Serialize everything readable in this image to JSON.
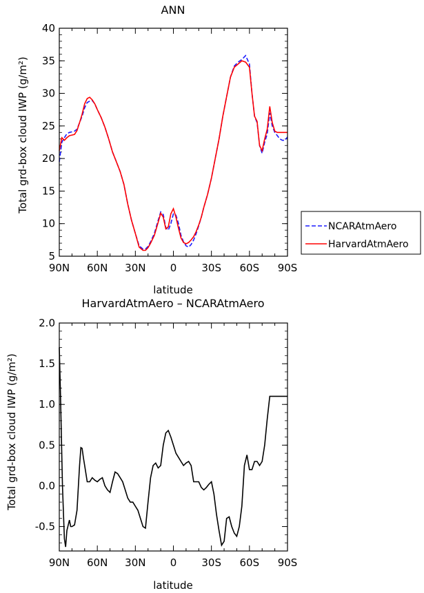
{
  "chart_data": [
    {
      "type": "line",
      "title": "ANN",
      "xlabel": "latitude",
      "ylabel": "Total grd-box cloud IWP (g/m²)",
      "xlim": [
        90,
        -90
      ],
      "ylim": [
        5,
        40
      ],
      "xticks": [
        90,
        60,
        30,
        0,
        -30,
        -60,
        -90
      ],
      "xtick_labels": [
        "90N",
        "60N",
        "30N",
        "0",
        "30S",
        "60S",
        "90S"
      ],
      "yticks": [
        5,
        10,
        15,
        20,
        25,
        30,
        35,
        40
      ],
      "ytick_labels": [
        "5",
        "10",
        "15",
        "20",
        "25",
        "30",
        "35",
        "40"
      ],
      "legend": "outside-right",
      "series": [
        {
          "name": "NCARAtmAero",
          "color": "#1a1aff",
          "dash": "dashed",
          "x": [
            90,
            88,
            86,
            84,
            82,
            80,
            78,
            76,
            74,
            72,
            70,
            68,
            66,
            64,
            62,
            60,
            57,
            54,
            51,
            48,
            45,
            42,
            39,
            36,
            33,
            30,
            27,
            24,
            22,
            20,
            18,
            15,
            12,
            10,
            8,
            6,
            4,
            2,
            0,
            -2,
            -4,
            -6,
            -8,
            -10,
            -12,
            -14,
            -16,
            -18,
            -20,
            -22,
            -24,
            -27,
            -30,
            -33,
            -36,
            -39,
            -42,
            -45,
            -48,
            -51,
            -54,
            -57,
            -60,
            -62,
            -64,
            -66,
            -68,
            -70,
            -72,
            -74,
            -76,
            -78,
            -80,
            -82,
            -84,
            -86,
            -88,
            -90
          ],
          "y": [
            19.5,
            22.5,
            23.2,
            23.8,
            24.0,
            24.1,
            24.2,
            24.5,
            25.5,
            26.5,
            27.8,
            28.6,
            28.8,
            28.9,
            28.4,
            27.5,
            26.3,
            24.8,
            23.0,
            21.0,
            19.5,
            18.0,
            16.0,
            13.0,
            10.5,
            8.5,
            6.6,
            6.1,
            6.1,
            6.5,
            7.2,
            8.5,
            10.5,
            11.8,
            11.4,
            9.4,
            9.0,
            10.0,
            11.5,
            11.3,
            10.0,
            8.2,
            7.2,
            6.6,
            6.4,
            6.8,
            7.5,
            8.5,
            9.7,
            11.0,
            12.5,
            14.5,
            17.0,
            20.0,
            23.0,
            26.5,
            29.5,
            32.5,
            34.2,
            34.8,
            35.2,
            35.8,
            34.5,
            30.0,
            26.5,
            25.5,
            22.0,
            20.8,
            22.5,
            23.8,
            27.0,
            25.0,
            24.0,
            23.5,
            23.0,
            22.8,
            22.8,
            23.3
          ]
        },
        {
          "name": "HarvardAtmAero",
          "color": "#ff0000",
          "dash": "solid",
          "x": [
            90,
            88,
            86,
            84,
            82,
            80,
            78,
            76,
            74,
            72,
            70,
            68,
            66,
            64,
            62,
            60,
            57,
            54,
            51,
            48,
            45,
            42,
            39,
            36,
            33,
            30,
            27,
            24,
            22,
            20,
            18,
            15,
            12,
            10,
            8,
            6,
            4,
            2,
            0,
            -2,
            -4,
            -6,
            -8,
            -10,
            -12,
            -14,
            -16,
            -18,
            -20,
            -22,
            -24,
            -27,
            -30,
            -33,
            -36,
            -39,
            -42,
            -45,
            -48,
            -51,
            -54,
            -57,
            -60,
            -62,
            -64,
            -66,
            -68,
            -70,
            -72,
            -74,
            -76,
            -78,
            -80,
            -82,
            -84,
            -86,
            -88,
            -90
          ],
          "y": [
            21.2,
            23.2,
            22.8,
            23.2,
            23.5,
            23.6,
            23.7,
            24.3,
            25.5,
            26.8,
            28.4,
            29.2,
            29.4,
            29.0,
            28.4,
            27.5,
            26.3,
            24.8,
            23.0,
            21.0,
            19.5,
            18.0,
            16.0,
            13.0,
            10.5,
            8.5,
            6.4,
            5.9,
            5.9,
            6.3,
            7.0,
            8.2,
            10.2,
            11.6,
            11.0,
            9.2,
            9.5,
            11.5,
            12.3,
            11.0,
            9.3,
            7.8,
            7.1,
            6.9,
            7.1,
            7.5,
            8.0,
            8.8,
            9.8,
            11.0,
            12.5,
            14.5,
            17.0,
            20.0,
            23.0,
            26.5,
            29.5,
            32.5,
            34.0,
            34.5,
            35.0,
            34.8,
            34.0,
            30.0,
            26.5,
            25.7,
            22.0,
            21.2,
            23.0,
            24.5,
            28.0,
            25.5,
            24.2,
            24.0,
            24.0,
            24.0,
            24.0,
            24.0
          ]
        }
      ]
    },
    {
      "type": "line",
      "title": "HarvardAtmAero – NCARAtmAero",
      "xlabel": "latitude",
      "ylabel": "Total grd-box cloud IWP (g/m²)",
      "xlim": [
        90,
        -90
      ],
      "ylim": [
        -0.8,
        2.0
      ],
      "xticks": [
        90,
        60,
        30,
        0,
        -30,
        -60,
        -90
      ],
      "xtick_labels": [
        "90N",
        "60N",
        "30N",
        "0",
        "30S",
        "60S",
        "90S"
      ],
      "yticks": [
        -0.5,
        0,
        0.5,
        1,
        1.5,
        2
      ],
      "ytick_labels": [
        "-0.5",
        "0.0",
        "0.5",
        "1.0",
        "1.5",
        "2.0"
      ],
      "series": [
        {
          "color": "#000000",
          "dash": "solid",
          "x": [
            90,
            89,
            87.5,
            86,
            85,
            84,
            82,
            81,
            80,
            78,
            76,
            74,
            73,
            72,
            71,
            70,
            68,
            66,
            64,
            62,
            60,
            58,
            56,
            54,
            52,
            50,
            48,
            46,
            44,
            42,
            40,
            38,
            36,
            34,
            32,
            30,
            28,
            26,
            24,
            22,
            20,
            18,
            16,
            14,
            12,
            10,
            8,
            6,
            4,
            2,
            0,
            -2,
            -4,
            -6,
            -8,
            -10,
            -12,
            -14,
            -16,
            -18,
            -20,
            -22,
            -24,
            -26,
            -28,
            -30,
            -32,
            -34,
            -36,
            -38,
            -40,
            -42,
            -44,
            -46,
            -48,
            -50,
            -52,
            -54,
            -56,
            -58,
            -60,
            -62,
            -64,
            -66,
            -68,
            -70,
            -72,
            -74,
            -76,
            -78,
            -80,
            -82,
            -84,
            -86,
            -88,
            -90
          ],
          "y": [
            1.7,
            1.1,
            0.0,
            -0.65,
            -0.75,
            -0.55,
            -0.42,
            -0.5,
            -0.5,
            -0.48,
            -0.3,
            0.25,
            0.47,
            0.46,
            0.35,
            0.25,
            0.05,
            0.05,
            0.1,
            0.07,
            0.05,
            0.08,
            0.1,
            0.0,
            -0.05,
            -0.08,
            0.05,
            0.17,
            0.15,
            0.1,
            0.05,
            -0.05,
            -0.15,
            -0.2,
            -0.2,
            -0.25,
            -0.3,
            -0.4,
            -0.5,
            -0.52,
            -0.2,
            0.1,
            0.25,
            0.28,
            0.22,
            0.25,
            0.5,
            0.65,
            0.68,
            0.6,
            0.5,
            0.4,
            0.35,
            0.3,
            0.25,
            0.28,
            0.3,
            0.25,
            0.05,
            0.05,
            0.05,
            -0.02,
            -0.05,
            -0.02,
            0.02,
            0.05,
            -0.1,
            -0.35,
            -0.55,
            -0.73,
            -0.68,
            -0.4,
            -0.38,
            -0.5,
            -0.58,
            -0.62,
            -0.5,
            -0.25,
            0.25,
            0.38,
            0.2,
            0.2,
            0.3,
            0.3,
            0.25,
            0.3,
            0.5,
            0.82,
            1.1,
            1.1,
            1.1,
            1.1,
            1.1,
            1.1,
            1.1,
            1.1
          ]
        }
      ]
    }
  ]
}
